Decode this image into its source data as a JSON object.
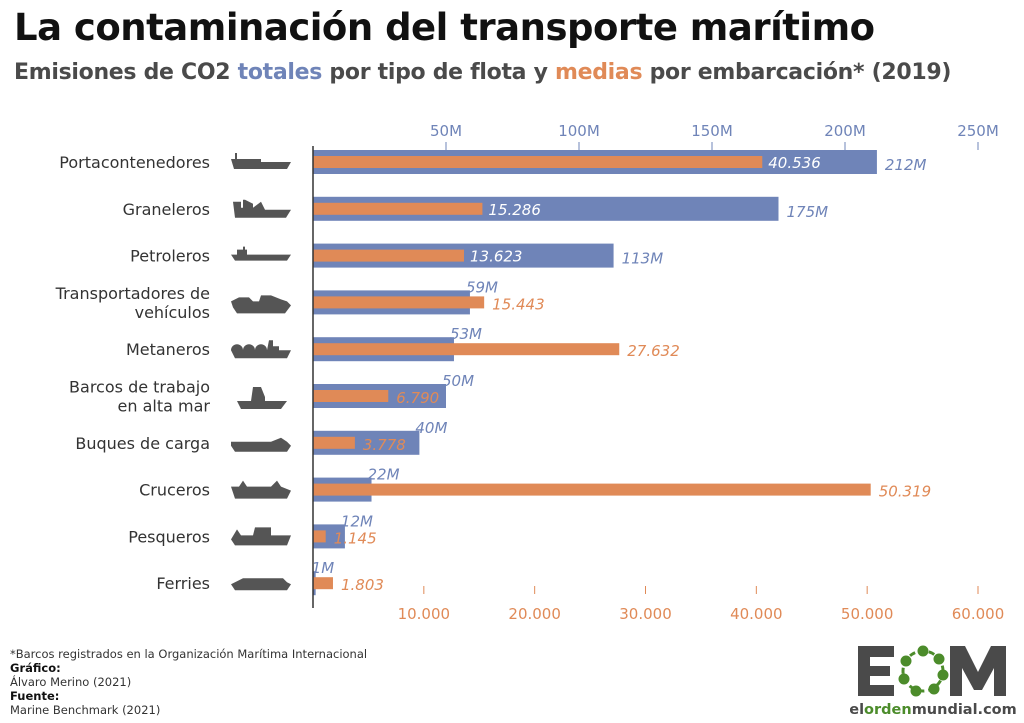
{
  "title": "La contaminación del transporte marítimo",
  "subtitle": {
    "part1": "Emisiones de CO2 ",
    "highlight1": "totales",
    "part2": " por tipo de flota y ",
    "highlight2": "medias",
    "part3": " por embarcación* (2019)"
  },
  "colors": {
    "totals": "#6f84b8",
    "average": "#e08a57",
    "icon": "#555555",
    "text": "#333333"
  },
  "chart_data": {
    "type": "bar",
    "orientation": "horizontal",
    "title": "La contaminación del transporte marítimo",
    "subtitle": "Emisiones de CO2 totales por tipo de flota y medias por embarcación* (2019)",
    "categories": [
      "Portacontenedores",
      "Graneleros",
      "Petroleros",
      "Transportadores de vehículos",
      "Metaneros",
      "Barcos de trabajo en alta mar",
      "Buques de carga",
      "Cruceros",
      "Pesqueros",
      "Ferries"
    ],
    "category_lines": [
      [
        "Portacontenedores"
      ],
      [
        "Graneleros"
      ],
      [
        "Petroleros"
      ],
      [
        "Transportadores de",
        "vehículos"
      ],
      [
        "Metaneros"
      ],
      [
        "Barcos de trabajo",
        "en alta mar"
      ],
      [
        "Buques de carga"
      ],
      [
        "Cruceros"
      ],
      [
        "Pesqueros"
      ],
      [
        "Ferries"
      ]
    ],
    "icons": [
      "container-ship-icon",
      "bulk-carrier-icon",
      "oil-tanker-icon",
      "vehicle-carrier-icon",
      "lng-carrier-icon",
      "offshore-work-vessel-icon",
      "cargo-ship-icon",
      "cruise-ship-icon",
      "fishing-boat-icon",
      "ferry-icon"
    ],
    "series": [
      {
        "name": "totales",
        "unit": "M",
        "axis": "top",
        "values": [
          212,
          175,
          113,
          59,
          53,
          50,
          40,
          22,
          12,
          1
        ],
        "labels": [
          "212M",
          "175M",
          "113M",
          "59M",
          "53M",
          "50M",
          "40M",
          "22M",
          "12M",
          "1M"
        ]
      },
      {
        "name": "medias",
        "axis": "bottom",
        "values": [
          40536,
          15286,
          13623,
          15443,
          27632,
          6790,
          3778,
          50319,
          1145,
          1803
        ],
        "labels": [
          "40.536",
          "15.286",
          "13.623",
          "15.443",
          "27.632",
          "6.790",
          "3.778",
          "50.319",
          "1.145",
          "1.803"
        ]
      }
    ],
    "top_axis": {
      "range": [
        0,
        250
      ],
      "ticks": [
        50,
        100,
        150,
        200,
        250
      ],
      "tick_labels": [
        "50M",
        "100M",
        "150M",
        "200M",
        "250M"
      ]
    },
    "bottom_axis": {
      "range": [
        0,
        60000
      ],
      "ticks": [
        10000,
        20000,
        30000,
        40000,
        50000,
        60000
      ],
      "tick_labels": [
        "10.000",
        "20.000",
        "30.000",
        "40.000",
        "50.000",
        "60.000"
      ]
    },
    "grid": false,
    "legend": "in-subtitle"
  },
  "footer": {
    "note": "*Barcos registrados en la Organización Marítima Internacional",
    "graphic_label": "Gráfico:",
    "graphic_author": "Álvaro Merino (2021)",
    "source_label": "Fuente:",
    "source": "Marine Benchmark (2021)"
  },
  "logo": {
    "letters": "EOM",
    "site_prefix": "el",
    "site_mid": "orden",
    "site_suffix": "mundial.com"
  }
}
